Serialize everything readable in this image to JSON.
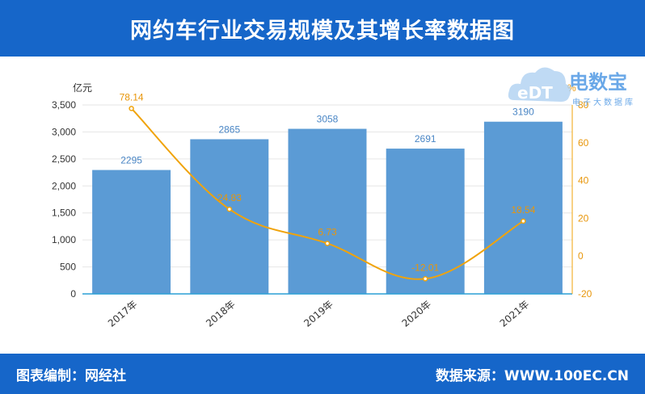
{
  "header": {
    "title": "网约车行业交易规模及其增长率数据图"
  },
  "footer": {
    "left_label": "图表编制：网经社",
    "right_label": "数据来源：WWW.100EC.CN"
  },
  "logo": {
    "letters": "eDT",
    "brand": "电数宝",
    "sub": "电子大数据库",
    "colors": {
      "cloud": "#a9cdf0",
      "text": "#6aa8e8"
    }
  },
  "chart_data": {
    "type": "bar",
    "categories": [
      "2017年",
      "2018年",
      "2019年",
      "2020年",
      "2021年"
    ],
    "series": [
      {
        "type": "bar",
        "axis": "left",
        "values": [
          2295,
          2865,
          3058,
          2691,
          3190
        ],
        "color": "#5b9bd5"
      },
      {
        "type": "line",
        "axis": "right",
        "values": [
          78.14,
          24.83,
          6.73,
          -12.01,
          18.54
        ],
        "color": "#f0a30a"
      }
    ],
    "bar_labels": [
      "2295",
      "2865",
      "3058",
      "2691",
      "3190"
    ],
    "line_labels": [
      "78.14",
      "24.83",
      "6.73",
      "-12.01",
      "18.54"
    ],
    "y_left": {
      "unit": "亿元",
      "min": 0,
      "max": 3500,
      "ticks": [
        0,
        500,
        1000,
        1500,
        2000,
        2500,
        3000,
        3500
      ],
      "tick_labels": [
        "0",
        "500",
        "1,000",
        "1,500",
        "2,000",
        "2,500",
        "3,000",
        "3,500"
      ]
    },
    "y_right": {
      "unit": "%",
      "min": -20,
      "max": 80,
      "ticks": [
        -20,
        0,
        20,
        40,
        60,
        80
      ],
      "tick_labels": [
        "-20",
        "0",
        "20",
        "40",
        "60",
        "80"
      ]
    },
    "grid": true
  }
}
